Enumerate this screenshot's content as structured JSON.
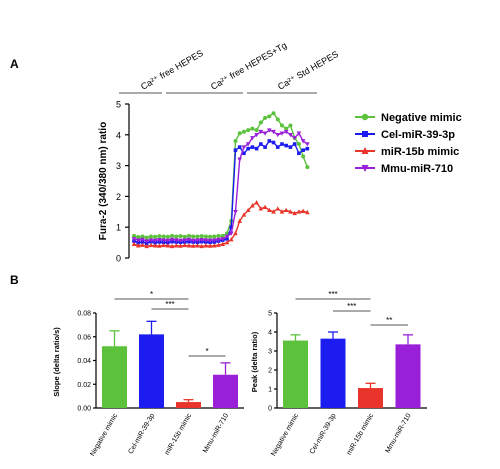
{
  "panels": {
    "a": "A",
    "b": "B"
  },
  "chart_data": [
    {
      "type": "line",
      "ylabel": "Fura-2 (340/380 nm) ratio",
      "ylim": [
        0,
        5
      ],
      "yticks": [
        "0",
        "1",
        "2",
        "3",
        "4",
        "5"
      ],
      "conditions": [
        "Ca²⁺ free HEPES",
        "Ca²⁺ free HEPES+Tg",
        "Ca²⁺ Std HEPES"
      ],
      "legend_position": "right",
      "series": [
        {
          "name": "Negative mimic",
          "color": "#5cc23c",
          "marker": "circle",
          "values": [
            0.72,
            0.68,
            0.7,
            0.66,
            0.7,
            0.69,
            0.71,
            0.7,
            0.69,
            0.72,
            0.7,
            0.71,
            0.69,
            0.72,
            0.7,
            0.7,
            0.71,
            0.7,
            0.69,
            0.7,
            0.72,
            0.72,
            0.8,
            1.2,
            3.8,
            4.05,
            4.1,
            4.15,
            4.2,
            4.15,
            4.4,
            4.55,
            4.6,
            4.7,
            4.5,
            4.3,
            4.2,
            4.3,
            3.9,
            3.7,
            3.3,
            2.95
          ]
        },
        {
          "name": "Cel-miR-39-3p",
          "color": "#1c1cf0",
          "marker": "square",
          "values": [
            0.55,
            0.5,
            0.52,
            0.48,
            0.53,
            0.5,
            0.52,
            0.51,
            0.5,
            0.53,
            0.52,
            0.51,
            0.52,
            0.53,
            0.52,
            0.51,
            0.53,
            0.52,
            0.51,
            0.52,
            0.55,
            0.58,
            0.62,
            1.0,
            3.5,
            3.6,
            3.4,
            3.55,
            3.6,
            3.55,
            3.7,
            3.6,
            3.8,
            3.75,
            3.6,
            3.7,
            3.65,
            3.6,
            3.7,
            3.4,
            3.5,
            3.55
          ]
        },
        {
          "name": "miR-15b mimic",
          "color": "#e8342a",
          "marker": "triangle",
          "values": [
            0.45,
            0.4,
            0.42,
            0.38,
            0.41,
            0.4,
            0.39,
            0.41,
            0.4,
            0.38,
            0.4,
            0.39,
            0.41,
            0.4,
            0.39,
            0.4,
            0.38,
            0.4,
            0.39,
            0.4,
            0.42,
            0.45,
            0.5,
            0.6,
            0.8,
            1.2,
            1.4,
            1.55,
            1.7,
            1.8,
            1.6,
            1.65,
            1.55,
            1.5,
            1.6,
            1.5,
            1.55,
            1.5,
            1.45,
            1.5,
            1.52,
            1.48
          ]
        },
        {
          "name": "Mmu-miR-710",
          "color": "#9a20d8",
          "marker": "triangle-down",
          "values": [
            0.62,
            0.58,
            0.6,
            0.55,
            0.58,
            0.57,
            0.59,
            0.58,
            0.57,
            0.6,
            0.58,
            0.57,
            0.58,
            0.6,
            0.57,
            0.58,
            0.59,
            0.58,
            0.57,
            0.58,
            0.6,
            0.62,
            0.7,
            0.8,
            1.5,
            3.2,
            3.6,
            3.7,
            3.9,
            4.0,
            4.1,
            4.05,
            4.15,
            4.1,
            4.0,
            4.05,
            4.1,
            4.0,
            3.9,
            4.05,
            3.8,
            3.7
          ]
        }
      ]
    },
    {
      "type": "bar",
      "ylabel": "Slope (delta ratio/s)",
      "ylim": [
        0,
        0.08
      ],
      "yticks": [
        "0.00",
        "0.02",
        "0.04",
        "0.06",
        "0.08"
      ],
      "categories": [
        "Negative mimic",
        "Cel-miR-39-3p",
        "miR-15b mimic",
        "Mmu-miR-710"
      ],
      "values": [
        0.052,
        0.062,
        0.005,
        0.028
      ],
      "errors": [
        0.013,
        0.011,
        0.002,
        0.01
      ],
      "colors": [
        "#5cc23c",
        "#1c1cf0",
        "#e8342a",
        "#9a20d8"
      ],
      "significance": [
        {
          "from": 0,
          "to": 2,
          "label": "*"
        },
        {
          "from": 1,
          "to": 2,
          "label": "***"
        },
        {
          "from": 2,
          "to": 3,
          "label": "*"
        }
      ]
    },
    {
      "type": "bar",
      "ylabel": "Peak (delta ratio)",
      "ylim": [
        0,
        5
      ],
      "yticks": [
        "0",
        "1",
        "2",
        "3",
        "4",
        "5"
      ],
      "categories": [
        "Negative mimic",
        "Cel-miR-39-3p",
        "miR-15b mimic",
        "Mmu-miR-710"
      ],
      "values": [
        3.55,
        3.65,
        1.05,
        3.35
      ],
      "errors": [
        0.3,
        0.35,
        0.25,
        0.5
      ],
      "colors": [
        "#5cc23c",
        "#1c1cf0",
        "#e8342a",
        "#9a20d8"
      ],
      "significance": [
        {
          "from": 0,
          "to": 2,
          "label": "***"
        },
        {
          "from": 1,
          "to": 2,
          "label": "***"
        },
        {
          "from": 2,
          "to": 3,
          "label": "**"
        }
      ]
    }
  ]
}
